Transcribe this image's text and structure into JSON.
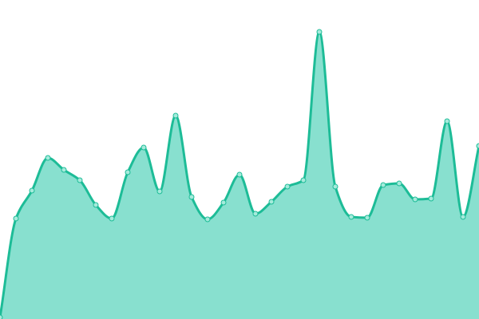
{
  "chart_data": {
    "type": "area",
    "title": "",
    "xlabel": "",
    "ylabel": "",
    "x": [
      0,
      1,
      2,
      3,
      4,
      5,
      6,
      7,
      8,
      9,
      10,
      11,
      12,
      13,
      14,
      15,
      16,
      17,
      18,
      19,
      20,
      21,
      22,
      23,
      24,
      25,
      26,
      27,
      28,
      29,
      30
    ],
    "values": [
      2,
      126,
      161,
      202,
      187,
      174,
      143,
      126,
      184,
      215,
      160,
      255,
      153,
      125,
      146,
      181,
      132,
      147,
      166,
      174,
      360,
      166,
      128,
      127,
      168,
      170,
      150,
      151,
      248,
      128,
      217
    ],
    "xlim": [
      0,
      30
    ],
    "ylim": [
      0,
      400
    ],
    "axes_visible": false,
    "grid": false,
    "smooth": true,
    "markers": true,
    "colors": {
      "line": "#1dbc97",
      "fill": "#88e0cf",
      "marker_fill": "#a6ebdc"
    }
  }
}
